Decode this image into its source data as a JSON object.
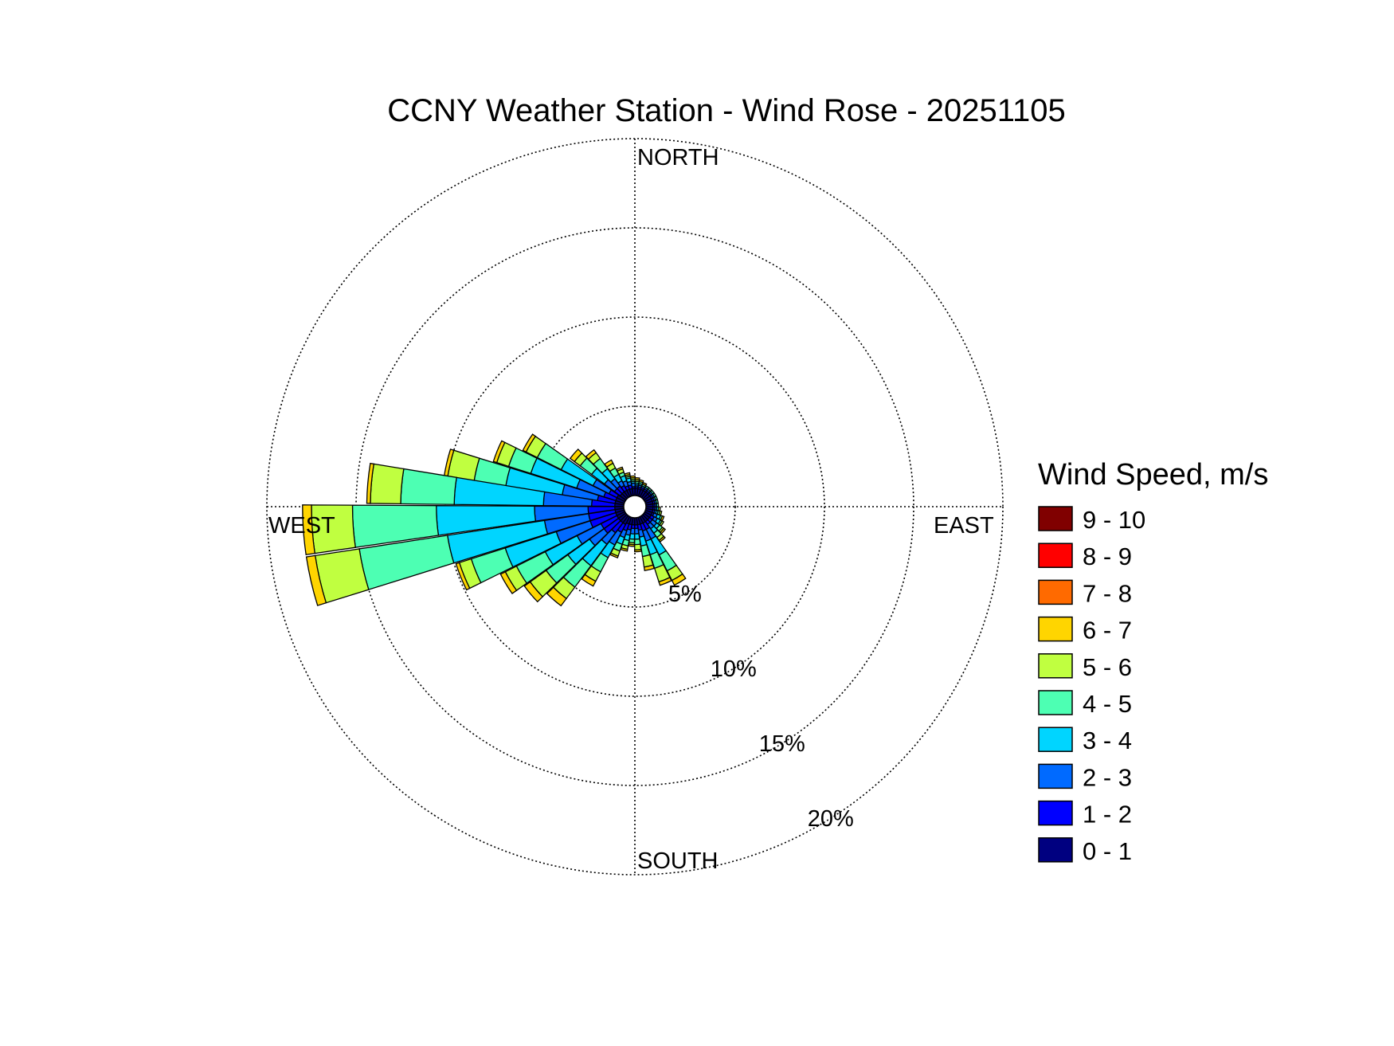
{
  "chart_data": {
    "type": "wind-rose",
    "title": "CCNY Weather Station - Wind Rose - 20251105",
    "directions": {
      "north": "NORTH",
      "east": "EAST",
      "south": "SOUTH",
      "west": "WEST"
    },
    "radial_ticks": [
      {
        "value": 5,
        "label": "5%"
      },
      {
        "value": 10,
        "label": "10%"
      },
      {
        "value": 15,
        "label": "15%"
      },
      {
        "value": 20,
        "label": "20%"
      }
    ],
    "radial_max": 20,
    "grid": true,
    "legend": {
      "title": "Wind Speed, m/s",
      "position": "right",
      "bins": [
        {
          "label": "9 - 10",
          "color": "#800000"
        },
        {
          "label": "8 - 9",
          "color": "#ff0000"
        },
        {
          "label": "7 - 8",
          "color": "#ff6a00"
        },
        {
          "label": "6 - 7",
          "color": "#ffd500"
        },
        {
          "label": "5 - 6",
          "color": "#c0ff40"
        },
        {
          "label": "4 - 5",
          "color": "#4dffb3"
        },
        {
          "label": "3 - 4",
          "color": "#00d5ff"
        },
        {
          "label": "2 - 3",
          "color": "#006aff"
        },
        {
          "label": "1 - 2",
          "color": "#0000ff"
        },
        {
          "label": "0 - 1",
          "color": "#000080"
        }
      ]
    },
    "speed_bin_order": [
      "0 - 1",
      "1 - 2",
      "2 - 3",
      "3 - 4",
      "4 - 5",
      "5 - 6",
      "6 - 7"
    ],
    "sectors": [
      {
        "direction_deg": 283,
        "cumulative_pct": [
          0.5,
          1.5,
          3.5,
          6.7,
          8.5,
          10.0,
          10.2
        ]
      },
      {
        "direction_deg": 275,
        "cumulative_pct": [
          0.5,
          1.8,
          4.5,
          9.5,
          12.5,
          14.2,
          14.4
        ]
      },
      {
        "direction_deg": 266,
        "cumulative_pct": [
          0.5,
          2.0,
          5.0,
          10.5,
          15.2,
          17.5,
          18.0
        ]
      },
      {
        "direction_deg": 257,
        "cumulative_pct": [
          0.5,
          2.0,
          4.5,
          10.0,
          15.0,
          17.5,
          18.0
        ]
      },
      {
        "direction_deg": 248,
        "cumulative_pct": [
          0.5,
          2.0,
          4.0,
          7.0,
          9.0,
          9.7,
          9.9
        ]
      },
      {
        "direction_deg": 239,
        "cumulative_pct": [
          0.5,
          1.5,
          3.0,
          5.0,
          6.8,
          7.5,
          7.8
        ]
      },
      {
        "direction_deg": 230,
        "cumulative_pct": [
          0.5,
          1.5,
          2.5,
          4.0,
          5.5,
          6.6,
          7.0
        ]
      },
      {
        "direction_deg": 221,
        "cumulative_pct": [
          0.5,
          1.2,
          2.0,
          3.5,
          5.0,
          5.8,
          6.3
        ]
      },
      {
        "direction_deg": 212,
        "cumulative_pct": [
          0.5,
          1.0,
          1.8,
          2.6,
          3.5,
          4.1,
          4.4
        ]
      },
      {
        "direction_deg": 203,
        "cumulative_pct": [
          0.4,
          0.8,
          1.2,
          1.6,
          2.0,
          2.3,
          2.4
        ]
      },
      {
        "direction_deg": 194,
        "cumulative_pct": [
          0.4,
          0.7,
          1.0,
          1.3,
          1.6,
          1.8,
          1.9
        ]
      },
      {
        "direction_deg": 185,
        "cumulative_pct": [
          0.4,
          0.6,
          0.9,
          1.2,
          1.4,
          1.5,
          1.6
        ]
      },
      {
        "direction_deg": 176,
        "cumulative_pct": [
          0.4,
          0.6,
          0.9,
          1.2,
          1.5,
          1.8,
          1.9
        ]
      },
      {
        "direction_deg": 167,
        "cumulative_pct": [
          0.4,
          0.7,
          1.1,
          1.6,
          2.2,
          2.8,
          3.0
        ]
      },
      {
        "direction_deg": 158,
        "cumulative_pct": [
          0.4,
          0.8,
          1.4,
          2.2,
          3.0,
          3.8,
          4.0
        ]
      },
      {
        "direction_deg": 149,
        "cumulative_pct": [
          0.4,
          0.8,
          1.4,
          2.4,
          3.4,
          4.0,
          4.3
        ]
      },
      {
        "direction_deg": 140,
        "cumulative_pct": [
          0.4,
          0.6,
          0.9,
          1.2,
          1.5,
          1.7,
          1.8
        ]
      },
      {
        "direction_deg": 131,
        "cumulative_pct": [
          0.4,
          0.6,
          0.9,
          1.1,
          1.3,
          1.4,
          1.5
        ]
      },
      {
        "direction_deg": 122,
        "cumulative_pct": [
          0.4,
          0.6,
          0.8,
          1.0,
          1.1,
          1.2,
          1.2
        ]
      },
      {
        "direction_deg": 113,
        "cumulative_pct": [
          0.4,
          0.5,
          0.7,
          0.9,
          1.0,
          1.0,
          1.1
        ]
      },
      {
        "direction_deg": 104,
        "cumulative_pct": [
          0.4,
          0.5,
          0.6,
          0.7,
          0.8,
          0.9,
          0.9
        ]
      },
      {
        "direction_deg": 95,
        "cumulative_pct": [
          0.4,
          0.5,
          0.6,
          0.7,
          0.7,
          0.8,
          0.8
        ]
      },
      {
        "direction_deg": 86,
        "cumulative_pct": [
          0.4,
          0.5,
          0.6,
          0.6,
          0.7,
          0.7,
          0.7
        ]
      },
      {
        "direction_deg": 77,
        "cumulative_pct": [
          0.4,
          0.5,
          0.6,
          0.6,
          0.7,
          0.7,
          0.7
        ]
      },
      {
        "direction_deg": 68,
        "cumulative_pct": [
          0.4,
          0.5,
          0.6,
          0.6,
          0.7,
          0.7,
          0.7
        ]
      },
      {
        "direction_deg": 59,
        "cumulative_pct": [
          0.4,
          0.5,
          0.6,
          0.6,
          0.7,
          0.7,
          0.7
        ]
      },
      {
        "direction_deg": 50,
        "cumulative_pct": [
          0.4,
          0.5,
          0.6,
          0.6,
          0.7,
          0.7,
          0.7
        ]
      },
      {
        "direction_deg": 41,
        "cumulative_pct": [
          0.4,
          0.5,
          0.6,
          0.6,
          0.7,
          0.7,
          0.7
        ]
      },
      {
        "direction_deg": 32,
        "cumulative_pct": [
          0.4,
          0.5,
          0.6,
          0.6,
          0.7,
          0.7,
          0.7
        ]
      },
      {
        "direction_deg": 23,
        "cumulative_pct": [
          0.4,
          0.5,
          0.6,
          0.6,
          0.7,
          0.7,
          0.8
        ]
      },
      {
        "direction_deg": 14,
        "cumulative_pct": [
          0.4,
          0.5,
          0.6,
          0.7,
          0.8,
          0.8,
          0.9
        ]
      },
      {
        "direction_deg": 5,
        "cumulative_pct": [
          0.4,
          0.5,
          0.6,
          0.7,
          0.8,
          0.9,
          1.0
        ]
      },
      {
        "direction_deg": 356,
        "cumulative_pct": [
          0.4,
          0.5,
          0.7,
          0.8,
          0.9,
          1.0,
          1.1
        ]
      },
      {
        "direction_deg": 347,
        "cumulative_pct": [
          0.4,
          0.6,
          0.8,
          1.0,
          1.1,
          1.2,
          1.3
        ]
      },
      {
        "direction_deg": 338,
        "cumulative_pct": [
          0.4,
          0.6,
          0.9,
          1.2,
          1.4,
          1.6,
          1.7
        ]
      },
      {
        "direction_deg": 329,
        "cumulative_pct": [
          0.4,
          0.7,
          1.0,
          1.4,
          1.8,
          2.1,
          2.3
        ]
      },
      {
        "direction_deg": 320,
        "cumulative_pct": [
          0.4,
          0.8,
          1.3,
          2.0,
          2.7,
          3.1,
          3.3
        ]
      },
      {
        "direction_deg": 311,
        "cumulative_pct": [
          0.4,
          0.8,
          1.5,
          2.4,
          3.2,
          3.6,
          3.9
        ]
      },
      {
        "direction_deg": 301,
        "cumulative_pct": [
          0.5,
          1.0,
          2.0,
          4.0,
          5.5,
          6.2,
          6.4
        ]
      },
      {
        "direction_deg": 292,
        "cumulative_pct": [
          0.5,
          1.2,
          2.8,
          5.5,
          6.8,
          7.5,
          7.7
        ]
      }
    ]
  }
}
